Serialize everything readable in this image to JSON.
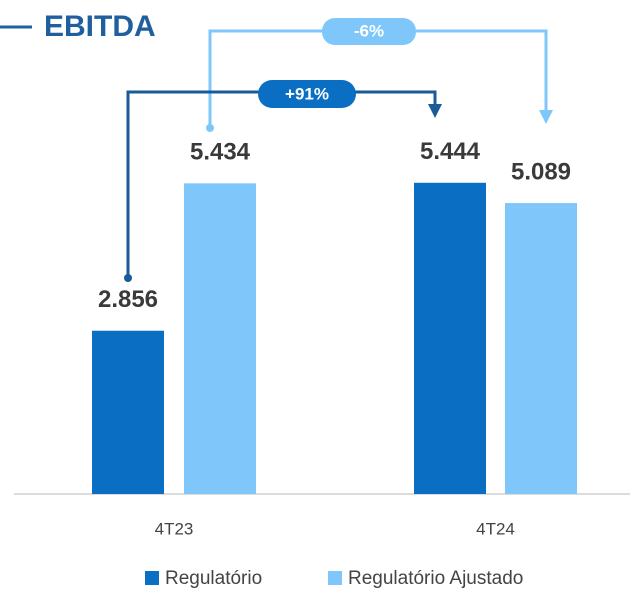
{
  "chart_data": {
    "type": "bar",
    "title": "EBITDA",
    "categories": [
      "4T23",
      "4T24"
    ],
    "series": [
      {
        "name": "Regulatório",
        "color": "#0a6fc2",
        "values": [
          2856,
          5444
        ],
        "value_labels": [
          "2.856",
          "5.444"
        ]
      },
      {
        "name": "Regulatório Ajustado",
        "color": "#7fc7fb",
        "values": [
          5434,
          5089
        ],
        "value_labels": [
          "5.434",
          "5.089"
        ]
      }
    ],
    "ylim": [
      0,
      6000
    ],
    "annotations": [
      "+91%",
      "-6%"
    ]
  }
}
